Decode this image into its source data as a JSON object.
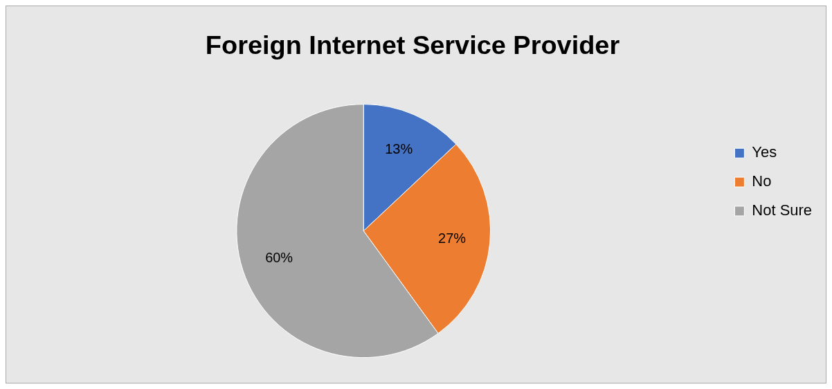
{
  "chart_data": {
    "type": "pie",
    "title": "Foreign Internet Service Provider",
    "categories": [
      "Yes",
      "No",
      "Not Sure"
    ],
    "values": [
      13,
      27,
      60
    ],
    "colors": [
      "#4472c4",
      "#ed7d31",
      "#a5a5a5"
    ],
    "value_labels": [
      "13%",
      "27%",
      "60%"
    ],
    "legend": "right"
  }
}
